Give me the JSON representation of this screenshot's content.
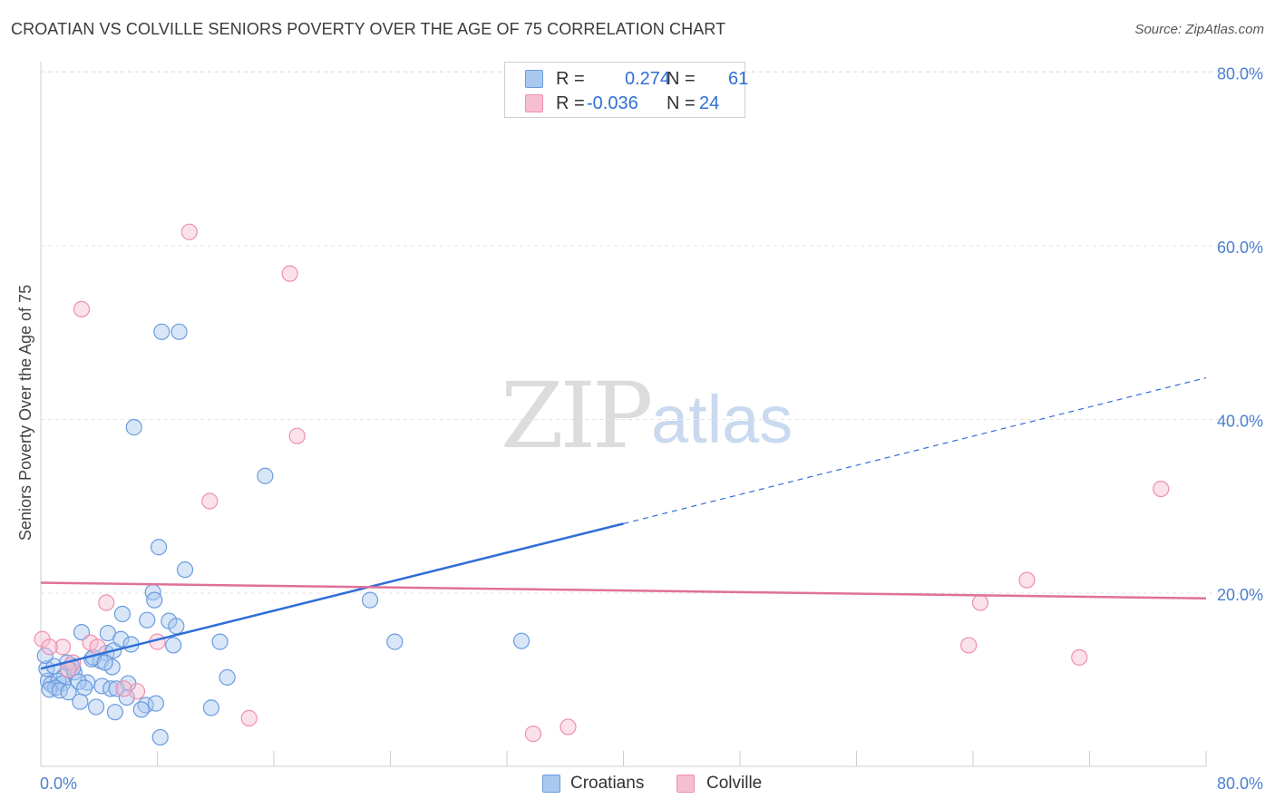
{
  "title": "CROATIAN VS COLVILLE SENIORS POVERTY OVER THE AGE OF 75 CORRELATION CHART",
  "source": "Source: ZipAtlas.com",
  "watermark": {
    "zip": "ZIP",
    "atlas": "atlas"
  },
  "legend": {
    "rows": [
      {
        "r_label": "R =",
        "r_value": "0.274",
        "n_label": "N =",
        "n_value": "61"
      },
      {
        "r_label": "R =",
        "r_value": "-0.036",
        "n_label": "N =",
        "n_value": "24"
      }
    ]
  },
  "bottom_legend": [
    "Croatians",
    "Colville"
  ],
  "colors": {
    "croatians_fill": "#a9c8f0",
    "croatians_stroke": "#6a9be0",
    "croatians_line": "#2f6fd6",
    "colville_fill": "#f6bfd0",
    "colville_stroke": "#ee8fae",
    "colville_line": "#e0709a",
    "grid": "#e3e3e3",
    "axis_text": "#4a7fd0"
  },
  "chart_data": {
    "type": "scatter",
    "title": "CROATIAN VS COLVILLE SENIORS POVERTY OVER THE AGE OF 75 CORRELATION CHART",
    "xlabel": "",
    "ylabel": "Seniors Poverty Over the Age of 75",
    "xlim": [
      0,
      80
    ],
    "ylim": [
      0,
      80
    ],
    "x_tick_labels": [
      "0.0%",
      "80.0%"
    ],
    "y_tick_labels": [
      "80.0%",
      "60.0%",
      "40.0%",
      "20.0%"
    ],
    "y_tick_values": [
      80,
      60,
      40,
      20
    ],
    "grid": true,
    "series": [
      {
        "name": "Croatians",
        "r": 0.274,
        "n": 61,
        "points": [
          [
            8.3,
            50.1
          ],
          [
            9.5,
            50.1
          ],
          [
            6.4,
            39.1
          ],
          [
            15.4,
            33.5
          ],
          [
            8.1,
            25.3
          ],
          [
            9.9,
            22.7
          ],
          [
            7.7,
            20.1
          ],
          [
            7.8,
            19.2
          ],
          [
            22.6,
            19.2
          ],
          [
            2.8,
            15.5
          ],
          [
            4.6,
            15.4
          ],
          [
            5.6,
            17.6
          ],
          [
            7.3,
            16.9
          ],
          [
            8.8,
            16.8
          ],
          [
            9.3,
            16.2
          ],
          [
            4.5,
            13.1
          ],
          [
            5.0,
            13.4
          ],
          [
            5.5,
            14.7
          ],
          [
            6.2,
            14.1
          ],
          [
            9.1,
            14.0
          ],
          [
            12.3,
            14.4
          ],
          [
            24.3,
            14.4
          ],
          [
            33.0,
            14.5
          ],
          [
            3.5,
            12.4
          ],
          [
            4.1,
            12.2
          ],
          [
            4.9,
            11.5
          ],
          [
            2.1,
            11.7
          ],
          [
            1.6,
            10.5
          ],
          [
            2.3,
            10.9
          ],
          [
            3.2,
            9.7
          ],
          [
            0.5,
            9.9
          ],
          [
            0.7,
            9.5
          ],
          [
            1.2,
            9.9
          ],
          [
            1.5,
            9.6
          ],
          [
            2.6,
            9.8
          ],
          [
            3.0,
            9.1
          ],
          [
            4.2,
            9.3
          ],
          [
            4.8,
            9.0
          ],
          [
            6.0,
            9.6
          ],
          [
            1.0,
            9.1
          ],
          [
            0.6,
            8.9
          ],
          [
            1.3,
            8.8
          ],
          [
            1.9,
            8.6
          ],
          [
            2.7,
            7.5
          ],
          [
            3.8,
            6.9
          ],
          [
            5.1,
            6.3
          ],
          [
            7.2,
            7.1
          ],
          [
            7.9,
            7.3
          ],
          [
            6.9,
            6.6
          ],
          [
            11.7,
            6.8
          ],
          [
            12.8,
            10.3
          ],
          [
            5.9,
            8.0
          ],
          [
            2.2,
            11.4
          ],
          [
            0.4,
            11.3
          ],
          [
            3.6,
            12.6
          ],
          [
            4.4,
            12.0
          ],
          [
            1.8,
            12.0
          ],
          [
            8.2,
            3.4
          ],
          [
            5.2,
            9.0
          ],
          [
            0.9,
            11.6
          ],
          [
            0.3,
            12.8
          ]
        ]
      },
      {
        "name": "Colville",
        "r": -0.036,
        "n": 24,
        "points": [
          [
            10.2,
            61.6
          ],
          [
            17.1,
            56.8
          ],
          [
            2.8,
            52.7
          ],
          [
            17.6,
            38.1
          ],
          [
            11.6,
            30.6
          ],
          [
            76.9,
            32.0
          ],
          [
            67.7,
            21.5
          ],
          [
            64.5,
            18.9
          ],
          [
            63.7,
            14.0
          ],
          [
            71.3,
            12.6
          ],
          [
            4.5,
            18.9
          ],
          [
            8.0,
            14.4
          ],
          [
            3.4,
            14.3
          ],
          [
            3.9,
            13.8
          ],
          [
            0.1,
            14.7
          ],
          [
            1.5,
            13.8
          ],
          [
            0.6,
            13.8
          ],
          [
            2.2,
            12.0
          ],
          [
            1.9,
            11.2
          ],
          [
            6.6,
            8.7
          ],
          [
            14.3,
            5.6
          ],
          [
            33.8,
            3.8
          ],
          [
            36.2,
            4.6
          ],
          [
            5.7,
            9.0
          ]
        ]
      }
    ],
    "trend_lines": [
      {
        "series": "Croatians",
        "x_start": 0,
        "y_start": 11.3,
        "x_solid_end": 40,
        "y_solid_end": 28.0,
        "x_end": 80,
        "y_end": 44.8,
        "dashed_after_solid": true
      },
      {
        "series": "Colville",
        "x_start": 0,
        "y_start": 21.2,
        "x_end": 80,
        "y_end": 19.4,
        "dashed_after_solid": false
      }
    ]
  }
}
